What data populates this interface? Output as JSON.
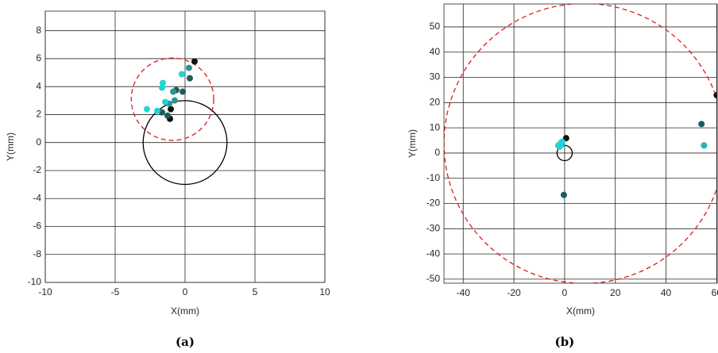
{
  "chart_data": [
    {
      "type": "scatter",
      "caption": "(a)",
      "x_label": "X(mm)",
      "y_label": "Y(mm)",
      "xlim": [
        -10,
        10
      ],
      "ylim": [
        -10,
        9.4
      ],
      "xticks": [
        -10,
        -5,
        0,
        5,
        10
      ],
      "yticks": [
        -10,
        -8,
        -6,
        -4,
        -2,
        0,
        2,
        4,
        6,
        8
      ],
      "grid": true,
      "series": [
        {
          "color": "#111111",
          "x": [
            0.68,
            -1.02,
            -1.08
          ],
          "values": [
            5.8,
            2.39,
            1.7
          ]
        },
        {
          "color": "#1d5c5c",
          "x": [
            0.34,
            -0.63,
            -0.17,
            -1.65,
            -1.25
          ],
          "values": [
            4.6,
            3.75,
            3.64,
            2.16,
            1.93
          ]
        },
        {
          "color": "#2a9494",
          "x": [
            0.28,
            -0.85,
            -0.74,
            -1.14
          ],
          "values": [
            5.34,
            3.64,
            3.01,
            2.78
          ]
        },
        {
          "color": "#22d3d3",
          "x": [
            -0.23,
            -1.59,
            -1.65,
            -1.42,
            -2.73,
            -1.99
          ],
          "values": [
            4.89,
            4.26,
            3.92,
            2.9,
            2.39,
            2.27
          ]
        }
      ],
      "circles": [
        {
          "cx": 0,
          "cy": 0,
          "r": 3,
          "color": "#000000",
          "dashed": false
        },
        {
          "cx": -0.9,
          "cy": 3.1,
          "r": 2.95,
          "color": "#e0191c",
          "dashed": true
        }
      ]
    },
    {
      "type": "scatter",
      "caption": "(b)",
      "x_label": "X(mm)",
      "y_label": "Y(mm)",
      "xlim": [
        -47.6,
        60.2
      ],
      "ylim": [
        -51.6,
        59.1
      ],
      "xticks": [
        -40,
        -20,
        0,
        20,
        40,
        60
      ],
      "yticks": [
        -50,
        -40,
        -30,
        -20,
        -10,
        0,
        10,
        20,
        30,
        40,
        50
      ],
      "grid": true,
      "series": [
        {
          "color": "#111111",
          "x": [
            0.6,
            60
          ],
          "values": [
            5.9,
            22.9
          ]
        },
        {
          "color": "#1d5c5c",
          "x": [
            -0.3,
            54
          ],
          "values": [
            -16.6,
            11.5
          ]
        },
        {
          "color": "#25b5b5",
          "x": [
            -1,
            55
          ],
          "values": [
            3.5,
            3
          ]
        },
        {
          "color": "#22d3d3",
          "x": [
            -2,
            -1.5,
            -2.5,
            -1
          ],
          "values": [
            2.5,
            4,
            3,
            4.5
          ]
        }
      ],
      "circles": [
        {
          "cx": 0,
          "cy": 0,
          "r": 3,
          "color": "#000000",
          "dashed": false
        },
        {
          "cx": 7.7,
          "cy": 3.8,
          "r": 55.3,
          "color": "#e0191c",
          "dashed": true
        }
      ]
    }
  ]
}
